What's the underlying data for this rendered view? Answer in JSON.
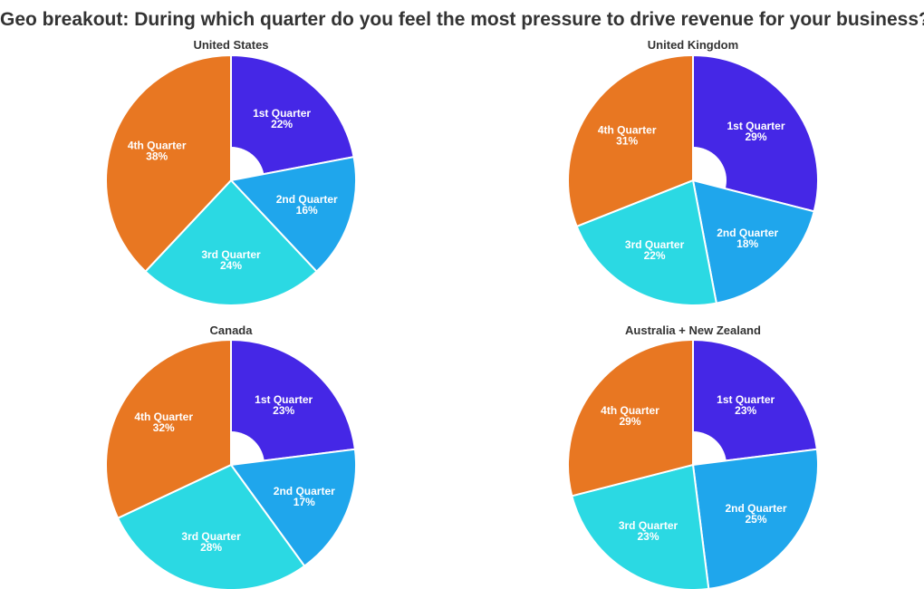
{
  "title": "Geo breakout: During which quarter do you feel the most pressure to drive revenue for your business?",
  "colors": {
    "1st Quarter": "#4527e6",
    "2nd Quarter": "#1fa6ec",
    "3rd Quarter": "#2bd9e3",
    "4th Quarter": "#e87722"
  },
  "chart_data": [
    {
      "type": "pie",
      "title": "United States",
      "categories": [
        "1st Quarter",
        "2nd Quarter",
        "3rd Quarter",
        "4th Quarter"
      ],
      "values": [
        22,
        16,
        24,
        38
      ],
      "labels": [
        "22%",
        "16%",
        "24%",
        "38%"
      ]
    },
    {
      "type": "pie",
      "title": "United Kingdom",
      "categories": [
        "1st Quarter",
        "2nd Quarter",
        "3rd Quarter",
        "4th Quarter"
      ],
      "values": [
        29,
        18,
        22,
        31
      ],
      "labels": [
        "29%",
        "18%",
        "22%",
        "31%"
      ]
    },
    {
      "type": "pie",
      "title": "Canada",
      "categories": [
        "1st Quarter",
        "2nd Quarter",
        "3rd Quarter",
        "4th Quarter"
      ],
      "values": [
        23,
        17,
        28,
        32
      ],
      "labels": [
        "23%",
        "17%",
        "28%",
        "32%"
      ]
    },
    {
      "type": "pie",
      "title": "Australia + New Zealand",
      "categories": [
        "1st Quarter",
        "2nd Quarter",
        "3rd Quarter",
        "4th Quarter"
      ],
      "values": [
        23,
        25,
        23,
        29
      ],
      "labels": [
        "23%",
        "25%",
        "23%",
        "29%"
      ]
    }
  ]
}
